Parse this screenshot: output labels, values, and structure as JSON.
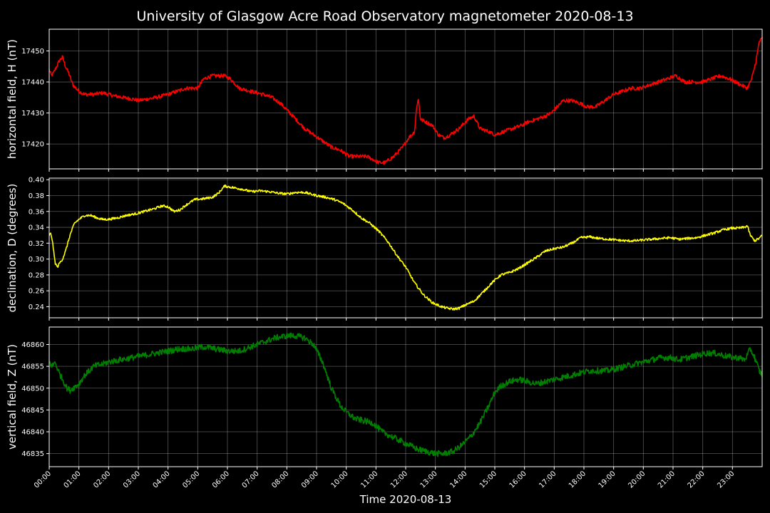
{
  "chart_data": {
    "type": "line",
    "title": "University of Glasgow Acre Road Observatory magnetometer 2020-08-13",
    "xlabel": "Time 2020-08-13",
    "x_unit": "hours",
    "xlim": [
      0,
      24
    ],
    "x_tick_labels": [
      "00:00",
      "01:00",
      "02:00",
      "03:00",
      "04:00",
      "05:00",
      "06:00",
      "07:00",
      "08:00",
      "09:00",
      "10:00",
      "11:00",
      "12:00",
      "13:00",
      "14:00",
      "15:00",
      "16:00",
      "17:00",
      "18:00",
      "19:00",
      "20:00",
      "21:00",
      "22:00",
      "23:00"
    ],
    "grid": true,
    "background": "#000000",
    "panels": [
      {
        "ylabel": "horizontal field, H (nT)",
        "color": "#ff0000",
        "ylim": [
          17412,
          17457
        ],
        "y_ticks": [
          17420,
          17430,
          17440,
          17450
        ],
        "noise": 0.6,
        "x": [
          0,
          0.08,
          0.15,
          0.25,
          0.35,
          0.45,
          0.55,
          0.65,
          0.8,
          1.0,
          1.2,
          1.5,
          1.8,
          2.0,
          2.2,
          2.5,
          2.8,
          3.0,
          3.3,
          3.6,
          4.0,
          4.3,
          4.6,
          4.9,
          5.0,
          5.2,
          5.5,
          5.7,
          5.9,
          6.1,
          6.4,
          6.8,
          7.2,
          7.5,
          7.8,
          8.0,
          8.3,
          8.6,
          8.9,
          9.2,
          9.5,
          9.8,
          10.1,
          10.4,
          10.7,
          10.9,
          11.1,
          11.3,
          11.6,
          11.9,
          12.1,
          12.3,
          12.35,
          12.42,
          12.5,
          12.7,
          12.9,
          13.1,
          13.3,
          13.5,
          13.8,
          14.1,
          14.3,
          14.5,
          14.8,
          15.0,
          15.3,
          15.6,
          15.9,
          16.1,
          16.4,
          16.7,
          16.9,
          17.1,
          17.3,
          17.6,
          17.9,
          18.1,
          18.4,
          18.7,
          19.0,
          19.3,
          19.6,
          19.9,
          20.2,
          20.5,
          20.8,
          21.1,
          21.4,
          21.7,
          22.0,
          22.3,
          22.6,
          22.9,
          23.1,
          23.3,
          23.5,
          23.65,
          23.8,
          23.9,
          24.0
        ],
        "y": [
          17444,
          17442,
          17443,
          17445,
          17447,
          17448,
          17445,
          17443,
          17439,
          17437,
          17436,
          17436,
          17436.5,
          17436,
          17435.5,
          17435,
          17434.5,
          17434,
          17434.5,
          17435,
          17436,
          17437,
          17438,
          17438,
          17438,
          17441,
          17442,
          17442,
          17442,
          17441,
          17438,
          17437,
          17436,
          17435,
          17433,
          17431,
          17428,
          17425,
          17423,
          17421,
          17419,
          17418,
          17416,
          17416,
          17416,
          17415,
          17414,
          17414,
          17416,
          17419,
          17422,
          17424,
          17430,
          17435,
          17428,
          17427,
          17426,
          17423,
          17422,
          17423,
          17425,
          17428,
          17429,
          17425,
          17424,
          17423,
          17424,
          17425,
          17426,
          17427,
          17428,
          17429,
          17430,
          17432,
          17434,
          17434,
          17433,
          17432,
          17432,
          17434,
          17436,
          17437,
          17438,
          17438,
          17439,
          17440,
          17441,
          17442,
          17440,
          17440,
          17440,
          17441,
          17442,
          17441,
          17440,
          17439,
          17438,
          17441,
          17447,
          17453,
          17454
        ]
      },
      {
        "ylabel": "declination, D (degrees)",
        "color": "#ffff00",
        "ylim": [
          0.226,
          0.402
        ],
        "y_ticks": [
          0.24,
          0.26,
          0.28,
          0.3,
          0.32,
          0.34,
          0.36,
          0.38,
          0.4
        ],
        "noise": 0.0015,
        "x": [
          0,
          0.05,
          0.1,
          0.15,
          0.2,
          0.28,
          0.35,
          0.45,
          0.55,
          0.7,
          0.85,
          1.0,
          1.2,
          1.4,
          1.6,
          1.8,
          2.0,
          2.3,
          2.6,
          2.9,
          3.2,
          3.5,
          3.8,
          4.0,
          4.2,
          4.4,
          4.6,
          4.9,
          5.2,
          5.5,
          5.7,
          5.9,
          6.2,
          6.5,
          6.8,
          7.1,
          7.4,
          7.7,
          8.0,
          8.3,
          8.6,
          8.8,
          9.0,
          9.3,
          9.6,
          9.9,
          10.2,
          10.5,
          10.8,
          11.1,
          11.4,
          11.7,
          12.0,
          12.3,
          12.6,
          12.9,
          13.2,
          13.4,
          13.6,
          13.8,
          14.0,
          14.3,
          14.6,
          14.9,
          15.2,
          15.5,
          15.8,
          16.1,
          16.4,
          16.7,
          17.0,
          17.3,
          17.6,
          17.9,
          18.2,
          18.5,
          18.8,
          19.1,
          19.4,
          19.7,
          20.0,
          20.3,
          20.6,
          20.9,
          21.2,
          21.5,
          21.8,
          22.1,
          22.4,
          22.7,
          23.0,
          23.2,
          23.4,
          23.5,
          23.6,
          23.75,
          23.9,
          24.0
        ],
        "y": [
          0.33,
          0.332,
          0.325,
          0.31,
          0.295,
          0.29,
          0.295,
          0.3,
          0.31,
          0.33,
          0.345,
          0.35,
          0.355,
          0.355,
          0.352,
          0.35,
          0.35,
          0.352,
          0.355,
          0.357,
          0.36,
          0.363,
          0.367,
          0.366,
          0.36,
          0.362,
          0.368,
          0.375,
          0.376,
          0.378,
          0.383,
          0.392,
          0.39,
          0.388,
          0.385,
          0.386,
          0.385,
          0.383,
          0.382,
          0.384,
          0.384,
          0.382,
          0.38,
          0.378,
          0.375,
          0.37,
          0.362,
          0.352,
          0.345,
          0.335,
          0.322,
          0.305,
          0.29,
          0.27,
          0.255,
          0.245,
          0.24,
          0.238,
          0.237,
          0.238,
          0.242,
          0.247,
          0.258,
          0.27,
          0.28,
          0.283,
          0.288,
          0.295,
          0.302,
          0.31,
          0.313,
          0.315,
          0.32,
          0.327,
          0.328,
          0.326,
          0.325,
          0.324,
          0.323,
          0.323,
          0.324,
          0.325,
          0.326,
          0.327,
          0.325,
          0.326,
          0.327,
          0.33,
          0.333,
          0.337,
          0.339,
          0.339,
          0.34,
          0.342,
          0.33,
          0.323,
          0.326,
          0.33
        ]
      },
      {
        "ylabel": "vertical field, Z (nT)",
        "color": "#008000",
        "ylim": [
          46832,
          46864
        ],
        "y_ticks": [
          46835,
          46840,
          46845,
          46850,
          46855,
          46860
        ],
        "noise": 0.7,
        "x": [
          0,
          0.1,
          0.2,
          0.3,
          0.45,
          0.6,
          0.7,
          0.8,
          0.9,
          1.0,
          1.2,
          1.5,
          1.8,
          2.0,
          2.4,
          2.8,
          3.2,
          3.6,
          4.0,
          4.4,
          4.8,
          5.2,
          5.6,
          6.0,
          6.4,
          6.8,
          7.2,
          7.6,
          8.0,
          8.3,
          8.6,
          8.9,
          9.2,
          9.5,
          9.8,
          10.0,
          10.3,
          10.6,
          10.9,
          11.2,
          11.5,
          11.8,
          12.1,
          12.4,
          12.7,
          13.0,
          13.3,
          13.6,
          13.9,
          14.2,
          14.5,
          14.8,
          15.0,
          15.2,
          15.5,
          15.8,
          16.1,
          16.4,
          16.7,
          17.0,
          17.3,
          17.6,
          17.9,
          18.2,
          18.5,
          18.8,
          19.1,
          19.4,
          19.7,
          20.0,
          20.3,
          20.6,
          20.9,
          21.2,
          21.5,
          21.8,
          22.1,
          22.4,
          22.7,
          23.0,
          23.2,
          23.4,
          23.5,
          23.6,
          23.75,
          23.9,
          24.0
        ],
        "y": [
          46856,
          46855,
          46856,
          46854,
          46852,
          46850,
          46849.5,
          46850,
          46850.5,
          46851,
          46853,
          46855,
          46855.5,
          46856,
          46856.5,
          46857,
          46857.5,
          46858,
          46858.5,
          46859,
          46859,
          46859.5,
          46859,
          46858.5,
          46858.5,
          46859.5,
          46860.5,
          46861.5,
          46862,
          46862,
          46861.5,
          46860,
          46856,
          46850,
          46846,
          46844.5,
          46843,
          46842.5,
          46842,
          46840,
          46839,
          46838,
          46837,
          46836,
          46835.5,
          46835,
          46835,
          46835.5,
          46837,
          46839,
          46842,
          46846,
          46849,
          46850.5,
          46851.5,
          46852,
          46851.5,
          46851,
          46851.5,
          46852,
          46852.5,
          46853,
          46853.5,
          46854,
          46854,
          46854,
          46854.5,
          46855,
          46855.5,
          46856,
          46856.5,
          46857,
          46857,
          46856.5,
          46857,
          46857.5,
          46858,
          46858,
          46857.5,
          46857,
          46857,
          46856.5,
          46857.5,
          46859,
          46857,
          46854,
          46853
        ]
      }
    ]
  }
}
